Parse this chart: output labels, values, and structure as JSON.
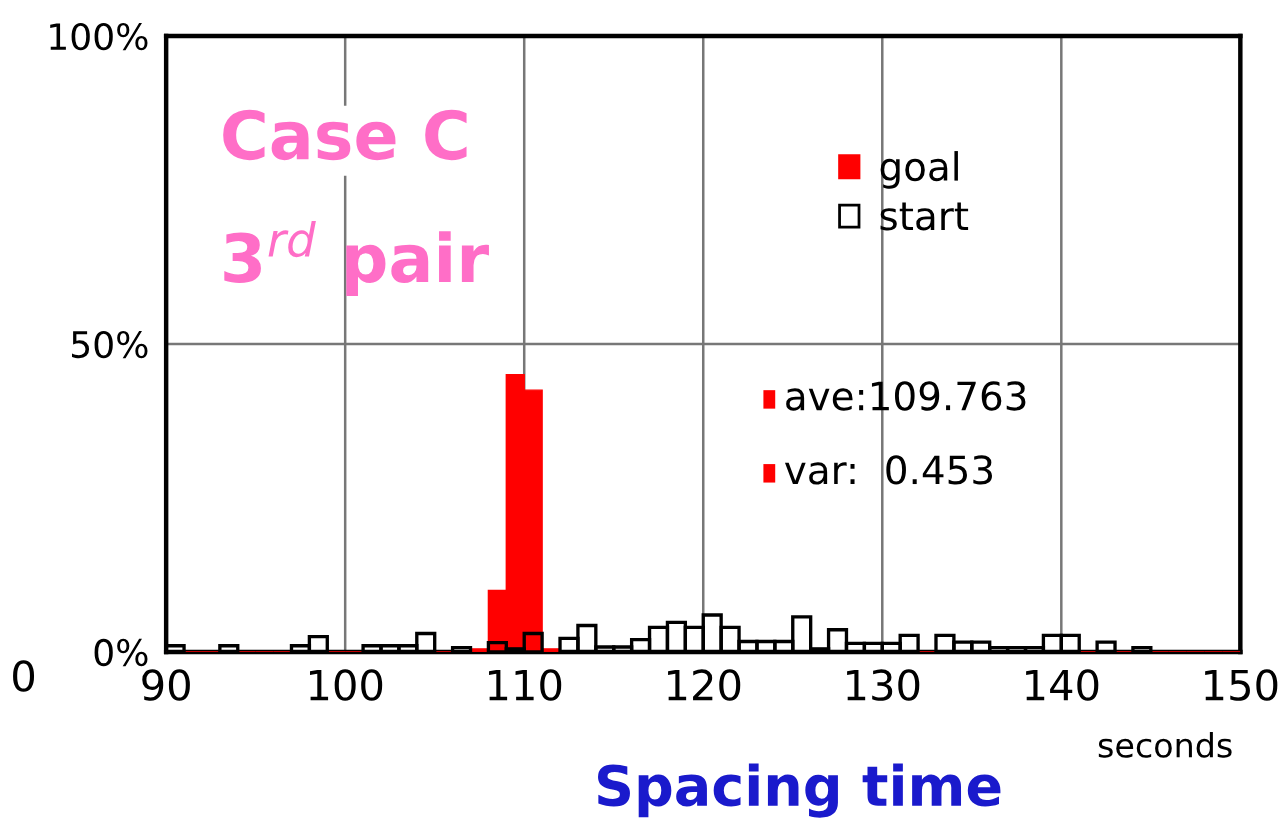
{
  "chart_data": {
    "type": "histogram",
    "xlabel": "seconds",
    "bins": [
      90,
      91,
      92,
      93,
      94,
      95,
      96,
      97,
      98,
      99,
      100,
      101,
      102,
      103,
      104,
      105,
      106,
      107,
      108,
      109,
      110,
      111,
      112,
      113,
      114,
      115,
      116,
      117,
      118,
      119,
      120,
      121,
      122,
      123,
      124,
      125,
      126,
      127,
      128,
      129,
      130,
      131,
      132,
      133,
      134,
      135,
      136,
      137,
      138,
      139,
      140,
      141,
      142,
      143,
      144,
      145,
      146,
      147,
      148,
      149,
      150
    ],
    "series": [
      {
        "name": "goal",
        "color": "#ff0000",
        "values": [
          0,
          0,
          0,
          0,
          0,
          0,
          0,
          0,
          0,
          0,
          0,
          0,
          0,
          0,
          0,
          0,
          0,
          0.5,
          10,
          45,
          42.5,
          0.5,
          0,
          0,
          0,
          0,
          0,
          0,
          0,
          0,
          0,
          0,
          0,
          0,
          0,
          0,
          0,
          0,
          0,
          0,
          0,
          0,
          0,
          0,
          0,
          0,
          0,
          0,
          0,
          0,
          0,
          0,
          0,
          0,
          0,
          0,
          0,
          0,
          0,
          0
        ]
      },
      {
        "name": "start",
        "color": "#000000",
        "values": [
          1,
          0,
          0,
          1,
          0,
          0,
          0,
          1,
          2.5,
          0,
          0,
          1,
          1,
          1,
          3,
          0,
          0.7,
          0,
          1.5,
          0.5,
          3,
          0,
          2.2,
          4.3,
          0.8,
          0.8,
          2,
          4,
          4.8,
          4,
          6,
          4,
          1.7,
          1.7,
          1.7,
          5.7,
          0.5,
          3.6,
          1.4,
          1.4,
          1.4,
          2.7,
          0,
          2.7,
          1.6,
          1.6,
          0.7,
          0.7,
          0.7,
          2.7,
          2.7,
          0,
          1.6,
          0,
          0.7,
          0,
          0,
          0,
          0,
          0
        ]
      }
    ],
    "xlim": [
      90,
      150
    ],
    "xticks": [
      90,
      100,
      110,
      120,
      130,
      140,
      150
    ],
    "ylim": [
      0,
      100
    ],
    "yticks": [
      {
        "value": 0,
        "label": "0%"
      },
      {
        "value": 50,
        "label": "50%"
      },
      {
        "value": 100,
        "label": "100%"
      }
    ],
    "grid": true,
    "legend": "top right",
    "annotations": [
      "Case C",
      "3$^{rd}$ pair",
      "ave:109.763",
      "var:  0.453",
      "Spacing time",
      "0"
    ]
  }
}
